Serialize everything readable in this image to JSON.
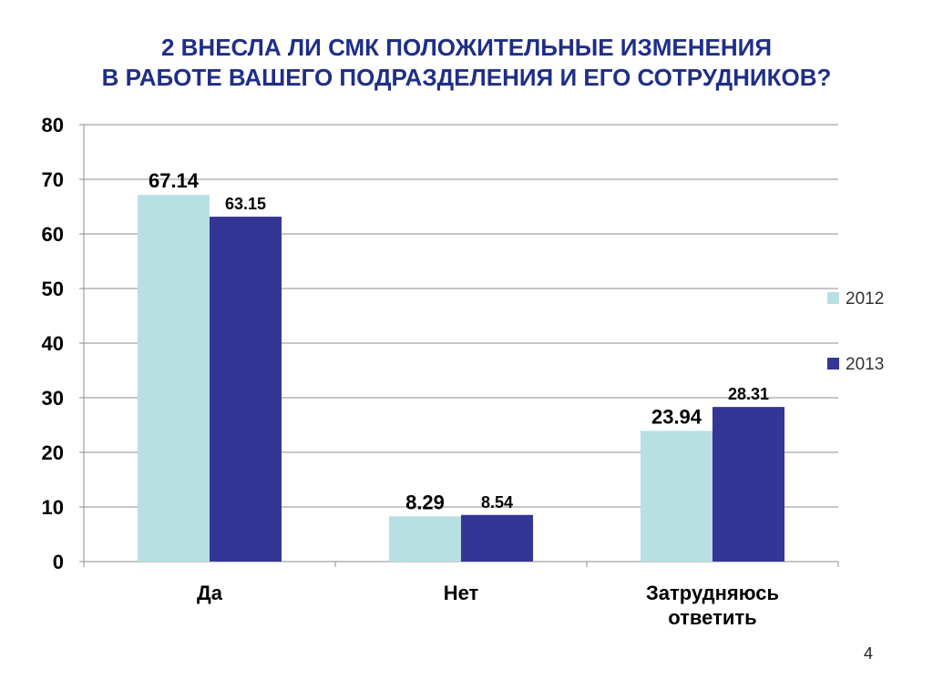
{
  "slide": {
    "title_line1": "2 ВНЕСЛА ЛИ СМК ПОЛОЖИТЕЛЬНЫЕ ИЗМЕНЕНИЯ",
    "title_line2": "В РАБОТЕ ВАШЕГО ПОДРАЗДЕЛЕНИЯ И ЕГО СОТРУДНИКОВ?",
    "page_number": "4"
  },
  "chart_data": {
    "type": "bar",
    "categories": [
      [
        "Да"
      ],
      [
        "Нет"
      ],
      [
        "Затрудняюсь",
        "ответить"
      ]
    ],
    "series": [
      {
        "name": "2012",
        "values": [
          67.14,
          8.29,
          23.94
        ],
        "labels": [
          "67.14",
          "8.29",
          "23.94"
        ],
        "color": "#b8e0e3"
      },
      {
        "name": "2013",
        "values": [
          63.15,
          8.54,
          28.31
        ],
        "labels": [
          "63.15",
          "8.54",
          "28.31"
        ],
        "color": "#343696"
      }
    ],
    "ylim": [
      0,
      80
    ],
    "yticks": [
      0,
      10,
      20,
      30,
      40,
      50,
      60,
      70,
      80
    ],
    "grid": true,
    "legend": "right"
  }
}
